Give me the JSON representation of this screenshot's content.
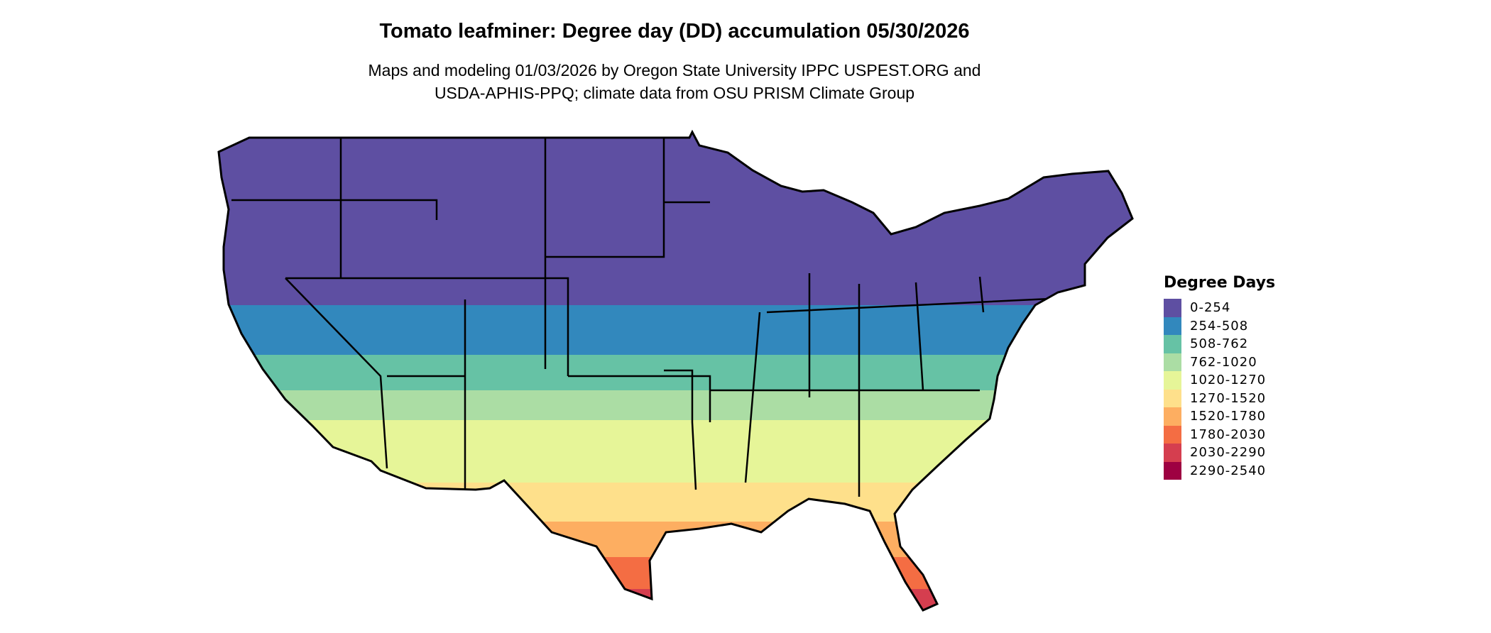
{
  "title": "Tomato leafminer: Degree day (DD) accumulation 05/30/2026",
  "subtitle_lines": [
    "Maps and modeling 01/03/2026 by Oregon State University IPPC USPEST.ORG and",
    "USDA-APHIS-PPQ; climate data from OSU PRISM Climate Group"
  ],
  "legend": {
    "title": "Degree Days",
    "items": [
      {
        "label": "0-254",
        "color": "#5E4FA2"
      },
      {
        "label": "254-508",
        "color": "#3288BD"
      },
      {
        "label": "508-762",
        "color": "#66C2A5"
      },
      {
        "label": "762-1020",
        "color": "#ABDDA4"
      },
      {
        "label": "1020-1270",
        "color": "#E6F598"
      },
      {
        "label": "1270-1520",
        "color": "#FEE08B"
      },
      {
        "label": "1520-1780",
        "color": "#FDAE61"
      },
      {
        "label": "1780-2030",
        "color": "#F46D43"
      },
      {
        "label": "2030-2290",
        "color": "#D53E4F"
      },
      {
        "label": "2290-2540",
        "color": "#9E0142"
      }
    ]
  },
  "map": {
    "region": "Contiguous United States",
    "boundary_color": "#000000"
  }
}
